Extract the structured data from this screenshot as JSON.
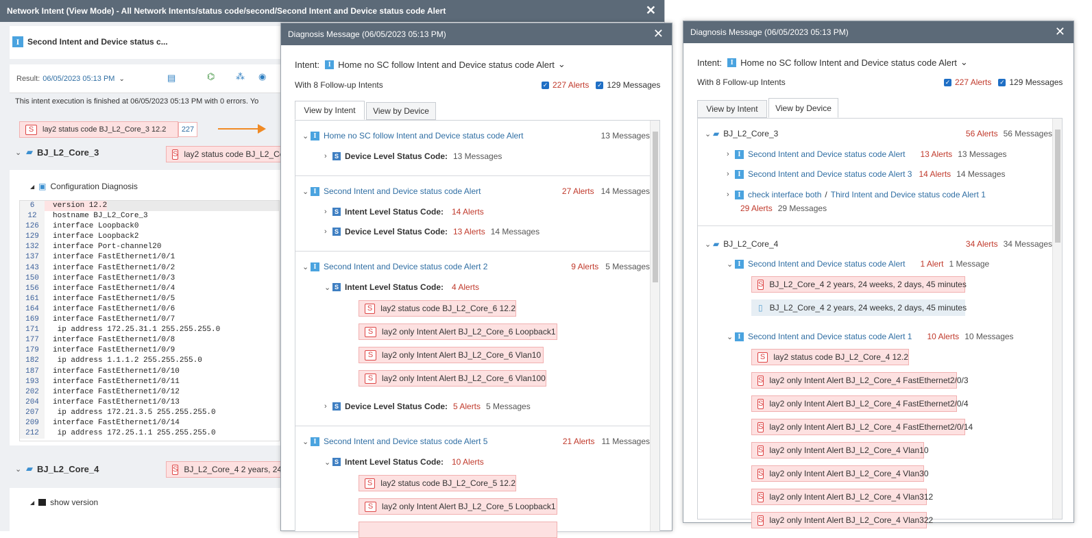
{
  "main_window": {
    "title": "Network Intent (View Mode) - All Network Intents/status code/second/Second Intent and Device status code Alert",
    "close": "✕",
    "intent_name": "Second Intent and Device status c...",
    "result_label": "Result:",
    "result_value": "06/05/2023 05:13 PM",
    "exec_msg": "This intent execution is finished at 06/05/2023 05:13 PM with 0 errors. Yo",
    "top_alert": "lay2 status code BJ_L2_Core_3 12.2",
    "top_alert_count": "227",
    "device1": "BJ_L2_Core_3",
    "device1_alert": "lay2 status code BJ_L2_Co",
    "config_title": "Configuration Diagnosis",
    "config_lines": [
      [
        "6",
        "version 12.2"
      ],
      [
        "12",
        "hostname BJ_L2_Core_3"
      ],
      [
        "126",
        "interface Loopback0"
      ],
      [
        "129",
        "interface Loopback2"
      ],
      [
        "132",
        "interface Port-channel20"
      ],
      [
        "137",
        "interface FastEthernet1/0/1"
      ],
      [
        "143",
        "interface FastEthernet1/0/2"
      ],
      [
        "150",
        "interface FastEthernet1/0/3"
      ],
      [
        "156",
        "interface FastEthernet1/0/4"
      ],
      [
        "161",
        "interface FastEthernet1/0/5"
      ],
      [
        "164",
        "interface FastEthernet1/0/6"
      ],
      [
        "169",
        "interface FastEthernet1/0/7"
      ],
      [
        "171",
        " ip address 172.25.31.1 255.255.255.0"
      ],
      [
        "177",
        "interface FastEthernet1/0/8"
      ],
      [
        "179",
        "interface FastEthernet1/0/9"
      ],
      [
        "182",
        " ip address 1.1.1.2 255.255.255.0"
      ],
      [
        "187",
        "interface FastEthernet1/0/10"
      ],
      [
        "193",
        "interface FastEthernet1/0/11"
      ],
      [
        "202",
        "interface FastEthernet1/0/12"
      ],
      [
        "204",
        "interface FastEthernet1/0/13"
      ],
      [
        "207",
        " ip address 172.21.3.5 255.255.255.0"
      ],
      [
        "209",
        "interface FastEthernet1/0/14"
      ],
      [
        "212",
        " ip address 172.25.1.1 255.255.255.0"
      ]
    ],
    "device2": "BJ_L2_Core_4",
    "device2_alert": "BJ_L2_Core_4 2 years, 24",
    "show_version": "show version"
  },
  "dialog_common": {
    "title": "Diagnosis Message (06/05/2023 05:13 PM)",
    "close": "✕",
    "intent_label": "Intent:",
    "intent_value": "Home no SC follow Intent and Device status code Alert",
    "followups": "With 8 Follow-up Intents",
    "alerts_cb": "227 Alerts",
    "messages_cb": "129 Messages",
    "tab_intent": "View by Intent",
    "tab_device": "View by Device"
  },
  "by_intent": {
    "g1": {
      "title": "Home no SC follow Intent and Device status code Alert",
      "count": "13 Messages",
      "row1": "Device Level Status Code:",
      "row1_msg": "13 Messages"
    },
    "g2": {
      "title": "Second Intent and Device status code Alert",
      "alerts": "27 Alerts",
      "msgs": "14 Messages",
      "row1": "Intent Level Status Code:",
      "row1_alerts": "14 Alerts",
      "row2": "Device Level Status Code:",
      "row2_alerts": "13 Alerts",
      "row2_msgs": "14 Messages"
    },
    "g3": {
      "title": "Second Intent and Device status code Alert 2",
      "alerts": "9 Alerts",
      "msgs": "5 Messages",
      "row1": "Intent Level Status Code:",
      "row1_alerts": "4 Alerts",
      "items": [
        "lay2  status code BJ_L2_Core_6 12.2",
        "lay2  only Intent Alert BJ_L2_Core_6 Loopback1",
        "lay2  only Intent Alert BJ_L2_Core_6 Vlan10",
        "lay2  only Intent Alert BJ_L2_Core_6 Vlan100"
      ],
      "row2": "Device Level Status Code:",
      "row2_alerts": "5 Alerts",
      "row2_msgs": "5 Messages"
    },
    "g4": {
      "title": "Second Intent and Device status code Alert 5",
      "alerts": "21 Alerts",
      "msgs": "11 Messages",
      "row1": "Intent Level Status Code:",
      "row1_alerts": "10 Alerts",
      "items": [
        "lay2  status code BJ_L2_Core_5 12.2",
        "lay2  only Intent Alert BJ_L2_Core_5 Loopback1"
      ]
    }
  },
  "by_device": {
    "d1": {
      "name": "BJ_L2_Core_3",
      "alerts": "56 Alerts",
      "msgs": "56 Messages",
      "r1": "Second Intent and Device status code Alert",
      "r1_alerts": "13 Alerts",
      "r1_msgs": "13 Messages",
      "r2": "Second Intent and Device status code Alert 3",
      "r2_alerts": "14 Alerts",
      "r2_msgs": "14 Messages",
      "r3a": "check interface both",
      "r3sep": "/",
      "r3b": "Third Intent and Device status code Alert 1",
      "r3_alerts": "29 Alerts",
      "r3_msgs": "29 Messages"
    },
    "d2": {
      "name": "BJ_L2_Core_4",
      "alerts": "34 Alerts",
      "msgs": "34 Messages",
      "r1": "Second Intent and Device status code Alert",
      "r1_alerts": "1 Alert",
      "r1_msgs": "1 Message",
      "r1_item": "BJ_L2_Core_4 2 years, 24 weeks, 2 days, 45 minutes",
      "r1_item2": "BJ_L2_Core_4 2 years, 24 weeks, 2 days, 45 minutes",
      "r2": "Second Intent and Device status code Alert 1",
      "r2_alerts": "10 Alerts",
      "r2_msgs": "10 Messages",
      "items": [
        "lay2  status code BJ_L2_Core_4 12.2",
        "lay2  only Intent Alert BJ_L2_Core_4 FastEthernet2/0/3",
        "lay2  only Intent Alert BJ_L2_Core_4 FastEthernet2/0/4",
        "lay2  only Intent Alert BJ_L2_Core_4 FastEthernet2/0/14",
        "lay2  only Intent Alert BJ_L2_Core_4 Vlan10",
        "lay2  only Intent Alert BJ_L2_Core_4 Vlan30",
        "lay2  only Intent Alert BJ_L2_Core_4 Vlan312",
        "lay2  only Intent Alert BJ_L2_Core_4 Vlan322"
      ]
    }
  },
  "colors": {
    "titlebar": "#5c6a78",
    "alert_bg": "#fde1e1",
    "alert_text": "#c0392b",
    "link": "#2f6ea3",
    "intent_badge": "#4aa3df"
  }
}
